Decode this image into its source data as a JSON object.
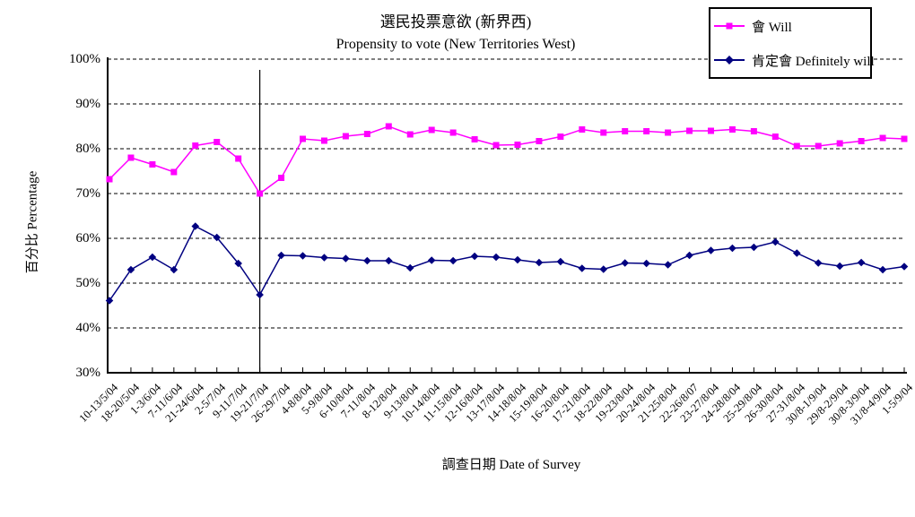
{
  "title": {
    "zh": "選民投票意欲 (新界西)",
    "en": "Propensity to vote (New Territories West)"
  },
  "axes": {
    "y_title": "百分比 Percentage",
    "x_title": "調查日期 Date of Survey",
    "y_tick_labels": [
      "100%",
      "90%",
      "80%",
      "70%",
      "60%",
      "50%",
      "40%",
      "30%"
    ]
  },
  "colors": {
    "will_series": "#FF00FF",
    "definitely_series": "#000080",
    "axis": "#000000",
    "gridline": "#000000"
  },
  "chart_data": {
    "type": "line",
    "title": "選民投票意欲 (新界西) Propensity to vote (New Territories West)",
    "xlabel": "調查日期 Date of Survey",
    "ylabel": "百分比 Percentage",
    "ylim": [
      30,
      100
    ],
    "y_tick_step": 10,
    "grid": "horizontal-dashed",
    "legend_position": "top-right",
    "categories": [
      "10-13/5/04",
      "18-20/5/04",
      "1-3/6/04",
      "7-11/6/04",
      "21-24/6/04",
      "2-5/7/04",
      "9-11/7/04",
      "19-21/7/04",
      "26-29/7/04",
      "4-8/8/04",
      "5-9/8/04",
      "6-10/8/04",
      "7-11/8/04",
      "8-12/8/04",
      "9-13/8/04",
      "10-14/8/04",
      "11-15/8/04",
      "12-16/8/04",
      "13-17/8/04",
      "14-18/8/04",
      "15-19/8/04",
      "16-20/8/04",
      "17-21/8/04",
      "18-22/8/04",
      "19-23/8/04",
      "20-24/8/04",
      "21-25/8/04",
      "22-26/8/07",
      "23-27/8/04",
      "24-28/8/04",
      "25-29/8/04",
      "26-30/8/04",
      "27-31/8/04",
      "30/8-1/9/04",
      "29/8-2/9/04",
      "30/8-3/9/04",
      "31/8-4/9/04",
      "1-5/9/04"
    ],
    "series": [
      {
        "name": "會 Will",
        "color": "#FF00FF",
        "marker": "square",
        "values": [
          73.2,
          78.0,
          76.5,
          74.8,
          80.7,
          81.5,
          77.8,
          70.0,
          73.5,
          82.2,
          81.8,
          82.8,
          83.3,
          85.0,
          83.2,
          84.2,
          83.6,
          82.1,
          80.8,
          80.9,
          81.7,
          82.7,
          84.3,
          83.6,
          83.9,
          83.9,
          83.6,
          84.0,
          84.0,
          84.3,
          83.9,
          82.7,
          80.6,
          80.6,
          81.2,
          81.7,
          82.4,
          82.2
        ]
      },
      {
        "name": "肯定會 Definitely will",
        "color": "#000080",
        "marker": "diamond",
        "values": [
          46.1,
          53.0,
          55.8,
          53.0,
          62.7,
          60.2,
          54.4,
          47.4,
          56.2,
          56.1,
          55.7,
          55.5,
          55.0,
          55.0,
          53.4,
          55.1,
          55.0,
          56.0,
          55.8,
          55.2,
          54.6,
          54.8,
          53.3,
          53.1,
          54.5,
          54.4,
          54.1,
          56.2,
          57.3,
          57.8,
          58.0,
          59.2,
          56.7,
          54.5,
          53.8,
          54.6,
          53.0,
          53.7
        ]
      }
    ],
    "annotations": [
      {
        "type": "vline",
        "at_category": "19-21/7/04",
        "at_index": 7
      }
    ]
  }
}
